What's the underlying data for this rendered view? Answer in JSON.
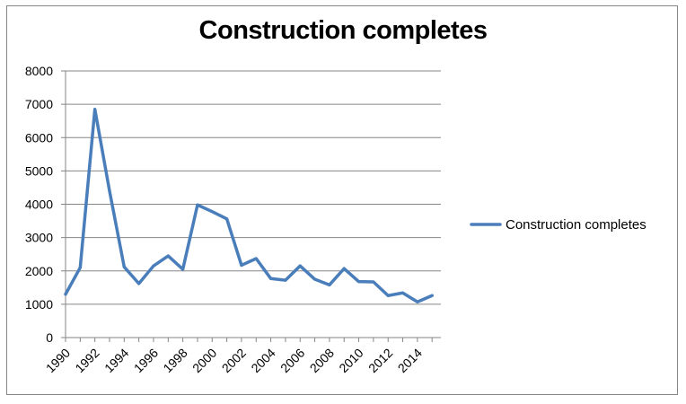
{
  "chart_data": {
    "type": "line",
    "title": "Construction completes",
    "xlabel": "",
    "ylabel": "",
    "x": [
      1990,
      1991,
      1992,
      1993,
      1994,
      1995,
      1996,
      1997,
      1998,
      1999,
      2000,
      2001,
      2002,
      2003,
      2004,
      2005,
      2006,
      2007,
      2008,
      2009,
      2010,
      2011,
      2012,
      2013,
      2014,
      2015
    ],
    "xticks": [
      "1990",
      "1992",
      "1994",
      "1996",
      "1998",
      "2000",
      "2002",
      "2004",
      "2006",
      "2008",
      "2010",
      "2012",
      "2014"
    ],
    "yticks": [
      "0",
      "1000",
      "2000",
      "3000",
      "4000",
      "5000",
      "6000",
      "7000",
      "8000"
    ],
    "ylim": [
      0,
      8000
    ],
    "grid": true,
    "legend": "right",
    "series": [
      {
        "name": "Construction completes",
        "color": "#4a7ebb",
        "values": [
          1300,
          2100,
          6850,
          4400,
          2120,
          1620,
          2150,
          2450,
          2050,
          3980,
          3780,
          3560,
          2170,
          2370,
          1770,
          1720,
          2150,
          1750,
          1580,
          2070,
          1680,
          1670,
          1260,
          1340,
          1070,
          1260
        ]
      }
    ]
  }
}
